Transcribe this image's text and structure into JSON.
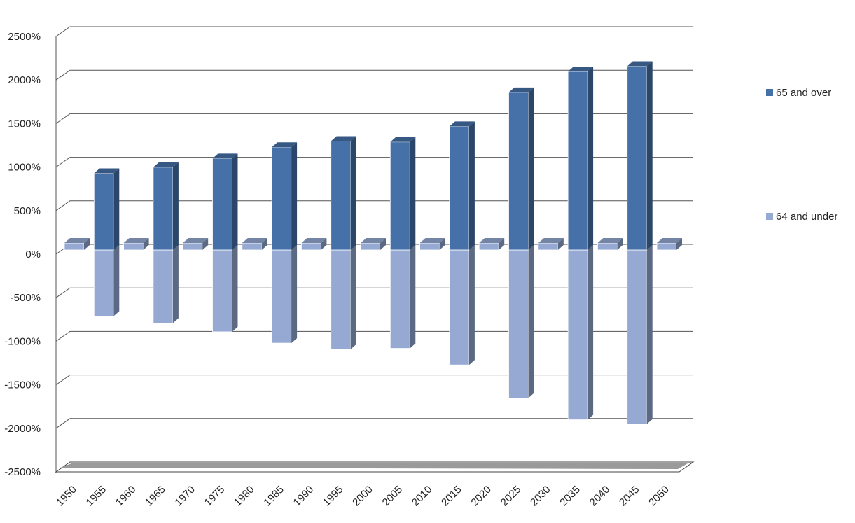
{
  "chart_data": {
    "type": "bar",
    "style": "3d-clustered-column",
    "title": "",
    "xlabel": "",
    "ylabel": "",
    "ylim": [
      -2500,
      2500
    ],
    "y_ticks": [
      "2500%",
      "2000%",
      "1500%",
      "1000%",
      "500%",
      "0%",
      "-500%",
      "-1000%",
      "-1500%",
      "-2000%",
      "-2500%"
    ],
    "y_tick_values": [
      2500,
      2000,
      1500,
      1000,
      500,
      0,
      -500,
      -1000,
      -1500,
      -2000,
      -2500
    ],
    "categories": [
      "1950",
      "1955",
      "1960",
      "1965",
      "1970",
      "1975",
      "1980",
      "1985",
      "1990",
      "1995",
      "2000",
      "2005",
      "2010",
      "2015",
      "2020",
      "2025",
      "2030",
      "2035",
      "2040",
      "2045",
      "2050"
    ],
    "series": [
      {
        "name": "64 and under",
        "color": "#95a9d3",
        "values": [
          80,
          -760,
          80,
          -840,
          80,
          -940,
          80,
          -1070,
          80,
          -1140,
          80,
          -1130,
          80,
          -1320,
          80,
          -1700,
          80,
          -1950,
          80,
          -2000,
          80
        ]
      },
      {
        "name": "65 and over",
        "color": "#4571a8",
        "values": [
          null,
          880,
          null,
          950,
          null,
          1050,
          null,
          1180,
          null,
          1250,
          null,
          1240,
          null,
          1420,
          null,
          1810,
          null,
          2050,
          null,
          2110,
          null
        ]
      }
    ],
    "grid": true,
    "legend": "right"
  }
}
